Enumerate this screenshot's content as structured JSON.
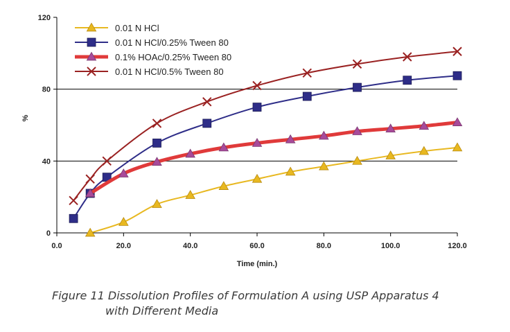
{
  "chart_data": {
    "type": "line",
    "title": "",
    "xlabel": "Time (min.)",
    "ylabel": "%",
    "xlim": [
      0,
      120
    ],
    "ylim": [
      0,
      120
    ],
    "x_ticks": [
      0,
      20,
      40,
      60,
      80,
      100,
      120
    ],
    "x_tick_labels": [
      "0.0",
      "20.0",
      "40.0",
      "60.0",
      "80.0",
      "100.0",
      "120.0"
    ],
    "y_ticks": [
      0,
      40,
      80,
      120
    ],
    "y_tick_labels": [
      "0",
      "40",
      "80",
      "120"
    ],
    "gridlines_y": [
      40,
      80
    ],
    "legend_position": "top-left",
    "series": [
      {
        "name": "0.01 N HCl",
        "color": "#e8b820",
        "marker": "triangle",
        "points": [
          [
            10,
            0
          ],
          [
            20,
            6
          ],
          [
            30,
            16
          ],
          [
            40,
            21
          ],
          [
            50,
            26
          ],
          [
            60,
            30
          ],
          [
            70,
            34
          ],
          [
            80,
            37
          ],
          [
            90,
            40
          ],
          [
            100,
            43
          ],
          [
            110,
            45.5
          ],
          [
            120,
            47.5
          ]
        ]
      },
      {
        "name": "0.01 N HCl/0.25% Tween 80",
        "color": "#2e2d88",
        "marker": "square",
        "points": [
          [
            5,
            8
          ],
          [
            10,
            22
          ],
          [
            15,
            31
          ],
          [
            30,
            50
          ],
          [
            45,
            61
          ],
          [
            60,
            70
          ],
          [
            75,
            76
          ],
          [
            90,
            81
          ],
          [
            105,
            85
          ],
          [
            120,
            87.5
          ]
        ]
      },
      {
        "name": "0.1% HOAc/0.25% Tween 80",
        "color": "#e03a3a",
        "marker": "triangle",
        "marker_color": "#a84a9a",
        "points": [
          [
            10,
            22
          ],
          [
            20,
            33
          ],
          [
            30,
            39.5
          ],
          [
            40,
            44
          ],
          [
            50,
            47.5
          ],
          [
            60,
            50
          ],
          [
            70,
            52
          ],
          [
            80,
            54
          ],
          [
            90,
            56.5
          ],
          [
            100,
            58
          ],
          [
            110,
            59.5
          ],
          [
            120,
            61.5
          ]
        ]
      },
      {
        "name": "0.01 N HCl/0.5% Tween 80",
        "color": "#9a2222",
        "marker": "x",
        "points": [
          [
            5,
            18
          ],
          [
            10,
            30
          ],
          [
            15,
            40
          ],
          [
            30,
            61
          ],
          [
            45,
            73
          ],
          [
            60,
            82
          ],
          [
            75,
            89
          ],
          [
            90,
            94
          ],
          [
            105,
            98
          ],
          [
            120,
            101
          ]
        ]
      }
    ]
  },
  "caption": {
    "line1": "Figure 11 Dissolution Profiles of Formulation A using USP Apparatus 4",
    "line2": "with Different Media"
  }
}
